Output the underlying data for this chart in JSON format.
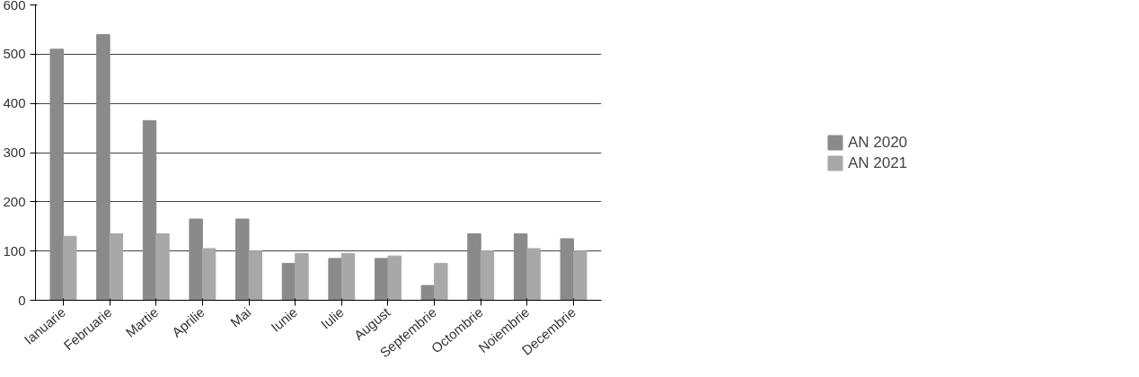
{
  "chart_data": {
    "type": "bar",
    "categories": [
      "Ianuarie",
      "Februarie",
      "Martie",
      "Aprilie",
      "Mai",
      "Iunie",
      "Iulie",
      "August",
      "Septembrie",
      "Octombrie",
      "Noiembrie",
      "Decembrie"
    ],
    "series": [
      {
        "name": "AN 2020",
        "color": "#8a8a8a",
        "values": [
          510,
          540,
          365,
          165,
          165,
          75,
          85,
          85,
          30,
          135,
          135,
          125
        ]
      },
      {
        "name": "AN 2021",
        "color": "#a8a8a8",
        "values": [
          130,
          135,
          135,
          105,
          100,
          95,
          95,
          90,
          75,
          100,
          105,
          100
        ]
      }
    ],
    "ylim": [
      0,
      600
    ],
    "yticks": [
      0,
      100,
      200,
      300,
      400,
      500,
      600
    ],
    "grid": "y",
    "legend": "right"
  }
}
